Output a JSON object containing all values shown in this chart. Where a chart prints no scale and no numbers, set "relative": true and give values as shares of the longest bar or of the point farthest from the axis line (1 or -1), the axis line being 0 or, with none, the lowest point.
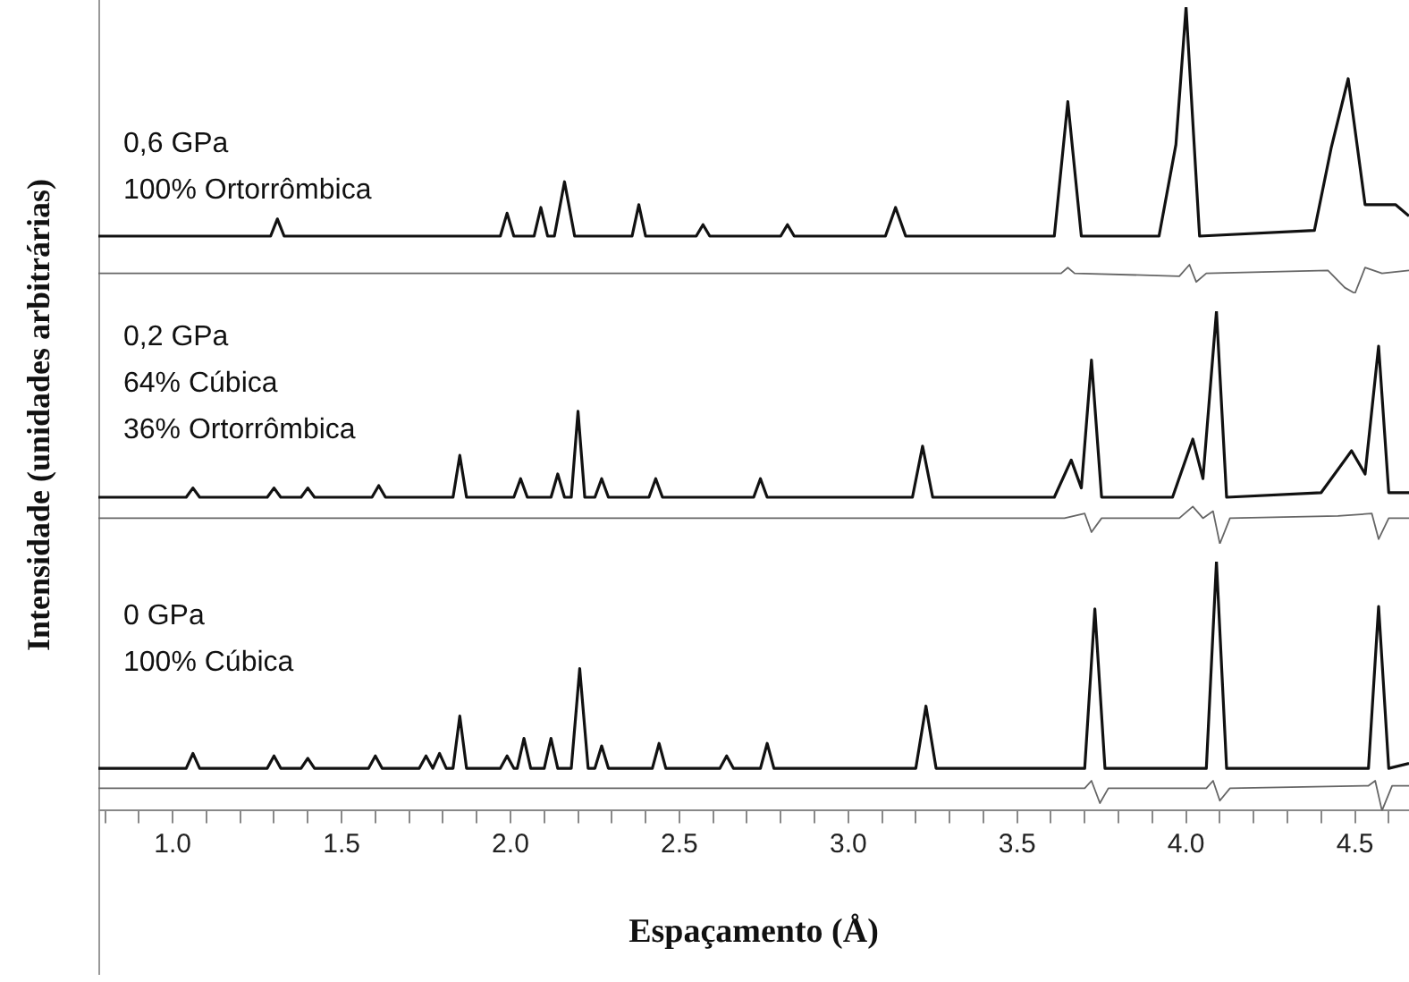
{
  "chart_data": [
    {
      "type": "line",
      "relative": true,
      "xlim": [
        0.78,
        4.66
      ],
      "tick_labels": false,
      "grid": false,
      "legend": false,
      "annotations": [
        "0,6 GPa",
        "100% Ortorrômbica"
      ],
      "series": [
        {
          "color": "#111111",
          "x": [
            0.78,
            1.29,
            1.31,
            1.33,
            1.97,
            1.99,
            2.01,
            2.07,
            2.09,
            2.11,
            2.13,
            2.16,
            2.19,
            2.36,
            2.38,
            2.4,
            2.55,
            2.57,
            2.59,
            2.8,
            2.82,
            2.84,
            3.11,
            3.14,
            3.17,
            3.61,
            3.65,
            3.69,
            3.92,
            3.97,
            4.0,
            4.04,
            4.38,
            4.43,
            4.48,
            4.53,
            4.57,
            4.62,
            4.66
          ],
          "values": [
            0.2,
            0.2,
            0.26,
            0.2,
            0.2,
            0.28,
            0.2,
            0.2,
            0.3,
            0.2,
            0.2,
            0.39,
            0.2,
            0.2,
            0.31,
            0.2,
            0.2,
            0.24,
            0.2,
            0.2,
            0.24,
            0.2,
            0.2,
            0.3,
            0.2,
            0.2,
            0.67,
            0.2,
            0.2,
            0.52,
            1.0,
            0.2,
            0.22,
            0.51,
            0.75,
            0.31,
            0.31,
            0.31,
            0.27
          ]
        },
        {
          "color": "#666666",
          "x": [
            0.78,
            3.63,
            3.65,
            3.67,
            3.98,
            4.01,
            4.03,
            4.06,
            4.42,
            4.47,
            4.5,
            4.53,
            4.58,
            4.66
          ],
          "values": [
            0.07,
            0.07,
            0.09,
            0.07,
            0.06,
            0.1,
            0.04,
            0.07,
            0.08,
            0.02,
            0.0,
            0.09,
            0.07,
            0.08
          ]
        }
      ]
    },
    {
      "type": "line",
      "relative": true,
      "xlim": [
        0.78,
        4.66
      ],
      "tick_labels": false,
      "grid": false,
      "legend": false,
      "ylabel": "Intensidade (unidades arbitrárias)",
      "annotations": [
        "0,2 GPa",
        "64% Cúbica",
        "36% Ortorrômbica"
      ],
      "series": [
        {
          "color": "#111111",
          "x": [
            0.78,
            1.04,
            1.06,
            1.08,
            1.28,
            1.3,
            1.32,
            1.38,
            1.4,
            1.42,
            1.59,
            1.61,
            1.63,
            1.83,
            1.85,
            1.87,
            2.01,
            2.03,
            2.05,
            2.12,
            2.14,
            2.16,
            2.18,
            2.2,
            2.22,
            2.25,
            2.27,
            2.29,
            2.41,
            2.43,
            2.45,
            2.72,
            2.74,
            2.76,
            3.19,
            3.22,
            3.25,
            3.61,
            3.66,
            3.69,
            3.72,
            3.75,
            3.96,
            4.02,
            4.05,
            4.09,
            4.12,
            4.4,
            4.49,
            4.53,
            4.57,
            4.6,
            4.66
          ],
          "values": [
            0.2,
            0.2,
            0.24,
            0.2,
            0.2,
            0.24,
            0.2,
            0.2,
            0.24,
            0.2,
            0.2,
            0.25,
            0.2,
            0.2,
            0.38,
            0.2,
            0.2,
            0.28,
            0.2,
            0.2,
            0.3,
            0.2,
            0.2,
            0.57,
            0.2,
            0.2,
            0.28,
            0.2,
            0.2,
            0.28,
            0.2,
            0.2,
            0.28,
            0.2,
            0.2,
            0.42,
            0.2,
            0.2,
            0.36,
            0.24,
            0.79,
            0.2,
            0.2,
            0.45,
            0.28,
            1.0,
            0.2,
            0.22,
            0.4,
            0.3,
            0.85,
            0.22,
            0.22
          ]
        },
        {
          "color": "#666666",
          "x": [
            0.78,
            3.64,
            3.7,
            3.72,
            3.75,
            3.98,
            4.02,
            4.05,
            4.08,
            4.1,
            4.13,
            4.45,
            4.55,
            4.57,
            4.6,
            4.66
          ],
          "values": [
            0.11,
            0.11,
            0.13,
            0.05,
            0.11,
            0.11,
            0.16,
            0.11,
            0.14,
            0.0,
            0.11,
            0.12,
            0.13,
            0.02,
            0.11,
            0.11
          ]
        }
      ]
    },
    {
      "type": "line",
      "relative": true,
      "xlim": [
        0.78,
        4.66
      ],
      "tick_labels": "x",
      "grid": false,
      "legend": false,
      "xlabel": "Espaçamento (Å)",
      "annotations": [
        "0 GPa",
        "100% Cúbica"
      ],
      "xticks": [
        {
          "value": 0.8,
          "label": null
        },
        {
          "value": 0.9,
          "label": null
        },
        {
          "value": 1.0,
          "label": "1.0"
        },
        {
          "value": 1.1,
          "label": null
        },
        {
          "value": 1.2,
          "label": null
        },
        {
          "value": 1.3,
          "label": null
        },
        {
          "value": 1.4,
          "label": null
        },
        1.5,
        {
          "value": 1.6,
          "label": null
        },
        {
          "value": 1.7,
          "label": null
        },
        {
          "value": 1.8,
          "label": null
        },
        {
          "value": 1.9,
          "label": null
        },
        {
          "value": 2.0,
          "label": "2.0"
        },
        {
          "value": 2.1,
          "label": null
        },
        {
          "value": 2.2,
          "label": null
        },
        {
          "value": 2.3,
          "label": null
        },
        {
          "value": 2.4,
          "label": null
        },
        2.5,
        {
          "value": 2.6,
          "label": null
        },
        {
          "value": 2.7,
          "label": null
        },
        {
          "value": 2.8,
          "label": null
        },
        {
          "value": 2.9,
          "label": null
        },
        {
          "value": 3.0,
          "label": "3.0"
        },
        {
          "value": 3.1,
          "label": null
        },
        {
          "value": 3.2,
          "label": null
        },
        {
          "value": 3.3,
          "label": null
        },
        {
          "value": 3.4,
          "label": null
        },
        3.5,
        {
          "value": 3.6,
          "label": null
        },
        {
          "value": 3.7,
          "label": null
        },
        {
          "value": 3.8,
          "label": null
        },
        {
          "value": 3.9,
          "label": null
        },
        {
          "value": 4.0,
          "label": "4.0"
        },
        {
          "value": 4.1,
          "label": null
        },
        {
          "value": 4.2,
          "label": null
        },
        {
          "value": 4.3,
          "label": null
        },
        {
          "value": 4.4,
          "label": null
        },
        4.5,
        {
          "value": 4.6,
          "label": null
        }
      ],
      "series": [
        {
          "color": "#111111",
          "x": [
            0.78,
            1.04,
            1.06,
            1.08,
            1.28,
            1.3,
            1.32,
            1.38,
            1.4,
            1.42,
            1.58,
            1.6,
            1.62,
            1.73,
            1.75,
            1.77,
            1.79,
            1.81,
            1.83,
            1.85,
            1.87,
            1.97,
            1.99,
            2.01,
            2.02,
            2.04,
            2.06,
            2.1,
            2.12,
            2.14,
            2.18,
            2.205,
            2.23,
            2.25,
            2.27,
            2.29,
            2.42,
            2.44,
            2.46,
            2.62,
            2.64,
            2.66,
            2.74,
            2.76,
            2.78,
            3.2,
            3.23,
            3.26,
            3.7,
            3.73,
            3.76,
            4.06,
            4.09,
            4.12,
            4.54,
            4.57,
            4.6,
            4.66
          ],
          "values": [
            0.17,
            0.17,
            0.23,
            0.17,
            0.17,
            0.22,
            0.17,
            0.17,
            0.21,
            0.17,
            0.17,
            0.22,
            0.17,
            0.17,
            0.22,
            0.17,
            0.23,
            0.17,
            0.17,
            0.38,
            0.17,
            0.17,
            0.22,
            0.17,
            0.17,
            0.29,
            0.17,
            0.17,
            0.29,
            0.17,
            0.17,
            0.57,
            0.17,
            0.17,
            0.26,
            0.17,
            0.17,
            0.27,
            0.17,
            0.17,
            0.22,
            0.17,
            0.17,
            0.27,
            0.17,
            0.17,
            0.42,
            0.17,
            0.17,
            0.81,
            0.17,
            0.17,
            1.0,
            0.17,
            0.17,
            0.82,
            0.17,
            0.19
          ]
        },
        {
          "color": "#666666",
          "x": [
            0.78,
            3.7,
            3.72,
            3.745,
            3.77,
            4.06,
            4.08,
            4.1,
            4.13,
            4.54,
            4.56,
            4.58,
            4.61,
            4.66
          ],
          "values": [
            0.09,
            0.09,
            0.12,
            0.03,
            0.09,
            0.09,
            0.12,
            0.04,
            0.09,
            0.1,
            0.12,
            0.0,
            0.1,
            0.1
          ]
        }
      ]
    }
  ]
}
